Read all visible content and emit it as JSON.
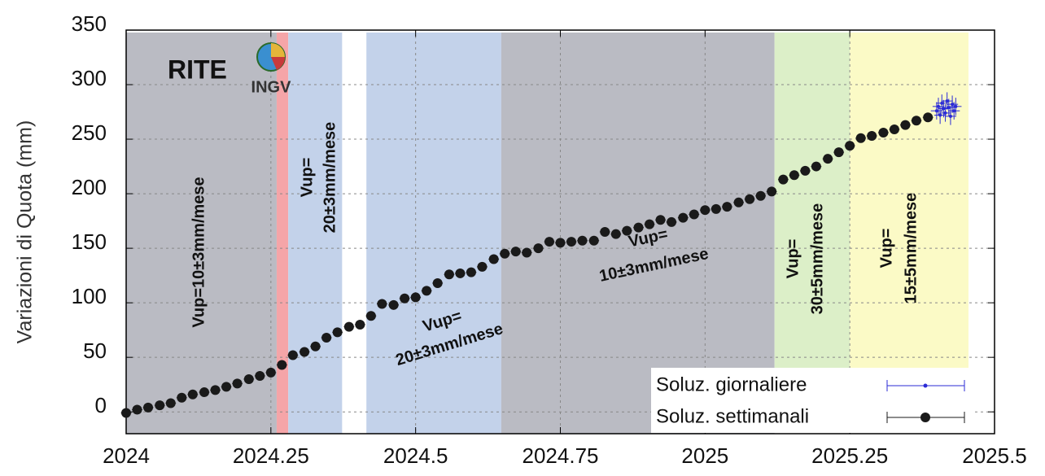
{
  "chart_data": {
    "type": "scatter",
    "ylabel": "Variazioni di Quota (mm)",
    "logo_text": [
      "RITE",
      "INGV"
    ],
    "xlim": [
      2024,
      2025.5
    ],
    "xticks": [
      2024,
      2024.25,
      2024.5,
      2024.75,
      2025,
      2025.25,
      2025.5
    ],
    "ylim": [
      -20,
      350
    ],
    "yticks": [
      0,
      50,
      100,
      150,
      200,
      250,
      300,
      350
    ],
    "grid": true,
    "legend": "lower right",
    "bands": [
      {
        "x0": 2024,
        "x1": 2024.26,
        "color": "#babbc3"
      },
      {
        "x0": 2024.26,
        "x1": 2024.28,
        "color": "#f5a5a8"
      },
      {
        "x0": 2024.28,
        "x1": 2024.373,
        "color": "#c3d2ea"
      },
      {
        "x0": 2024.415,
        "x1": 2024.648,
        "color": "#c3d2ea"
      },
      {
        "x0": 2024.648,
        "x1": 2025.12,
        "color": "#babbc3"
      },
      {
        "x0": 2025.12,
        "x1": 2025.25,
        "y0": 40,
        "color": "#dcefc8"
      },
      {
        "x0": 2025.25,
        "x1": 2025.455,
        "y0": 40,
        "color": "#fbfac6"
      }
    ],
    "annotations": [
      {
        "lines": [
          "Vup=10±3mm/mese"
        ]
      },
      {
        "lines": [
          "Vup=",
          "20±3mm/mese"
        ]
      },
      {
        "lines": [
          "Vup=",
          "20±3mm/mese"
        ]
      },
      {
        "lines": [
          "Vup=",
          "10±3mm/mese"
        ]
      },
      {
        "lines": [
          "Vup=",
          "30±5mm/mese"
        ]
      },
      {
        "lines": [
          "Vup=",
          "15±5mm/mese"
        ]
      }
    ],
    "series": [
      {
        "name": "Soluz. giornaliere",
        "color": "#2b2bd6",
        "xerr": 0.01,
        "yerr": 8,
        "x": [
          2025.4,
          2025.403,
          2025.406,
          2025.409,
          2025.412,
          2025.415,
          2025.418,
          2025.421,
          2025.424,
          2025.427,
          2025.43,
          2025.433
        ],
        "values": [
          276,
          280,
          272,
          283,
          278,
          274,
          285,
          279,
          271,
          282,
          276,
          280
        ]
      },
      {
        "name": "Soluz. settimanali",
        "color": "#1a1a1a",
        "xerr": 0.009,
        "yerr": 3,
        "x": [
          2024.0,
          2024.019,
          2024.038,
          2024.058,
          2024.077,
          2024.096,
          2024.115,
          2024.135,
          2024.154,
          2024.173,
          2024.192,
          2024.212,
          2024.231,
          2024.25,
          2024.269,
          2024.288,
          2024.308,
          2024.327,
          2024.346,
          2024.365,
          2024.385,
          2024.404,
          2024.423,
          2024.442,
          2024.462,
          2024.481,
          2024.5,
          2024.519,
          2024.538,
          2024.558,
          2024.577,
          2024.596,
          2024.615,
          2024.635,
          2024.654,
          2024.673,
          2024.692,
          2024.712,
          2024.731,
          2024.75,
          2024.769,
          2024.788,
          2024.808,
          2024.827,
          2024.846,
          2024.865,
          2024.885,
          2024.904,
          2024.923,
          2024.942,
          2024.962,
          2024.981,
          2025.0,
          2025.019,
          2025.038,
          2025.058,
          2025.077,
          2025.096,
          2025.115,
          2025.135,
          2025.154,
          2025.173,
          2025.192,
          2025.212,
          2025.231,
          2025.25,
          2025.269,
          2025.288,
          2025.308,
          2025.327,
          2025.346,
          2025.365,
          2025.385
        ],
        "values": [
          -1,
          2,
          4,
          6,
          8,
          13,
          16,
          18,
          20,
          23,
          26,
          30,
          33,
          36,
          43,
          52,
          55,
          60,
          68,
          73,
          78,
          80,
          88,
          99,
          98,
          104,
          105,
          111,
          118,
          126,
          127,
          128,
          133,
          140,
          145,
          147,
          146,
          150,
          156,
          155,
          156,
          157,
          157,
          165,
          163,
          166,
          169,
          172,
          176,
          174,
          178,
          181,
          185,
          186,
          188,
          192,
          195,
          198,
          202,
          213,
          217,
          221,
          225,
          232,
          238,
          244,
          251,
          253,
          256,
          259,
          263,
          267,
          270
        ]
      }
    ]
  }
}
